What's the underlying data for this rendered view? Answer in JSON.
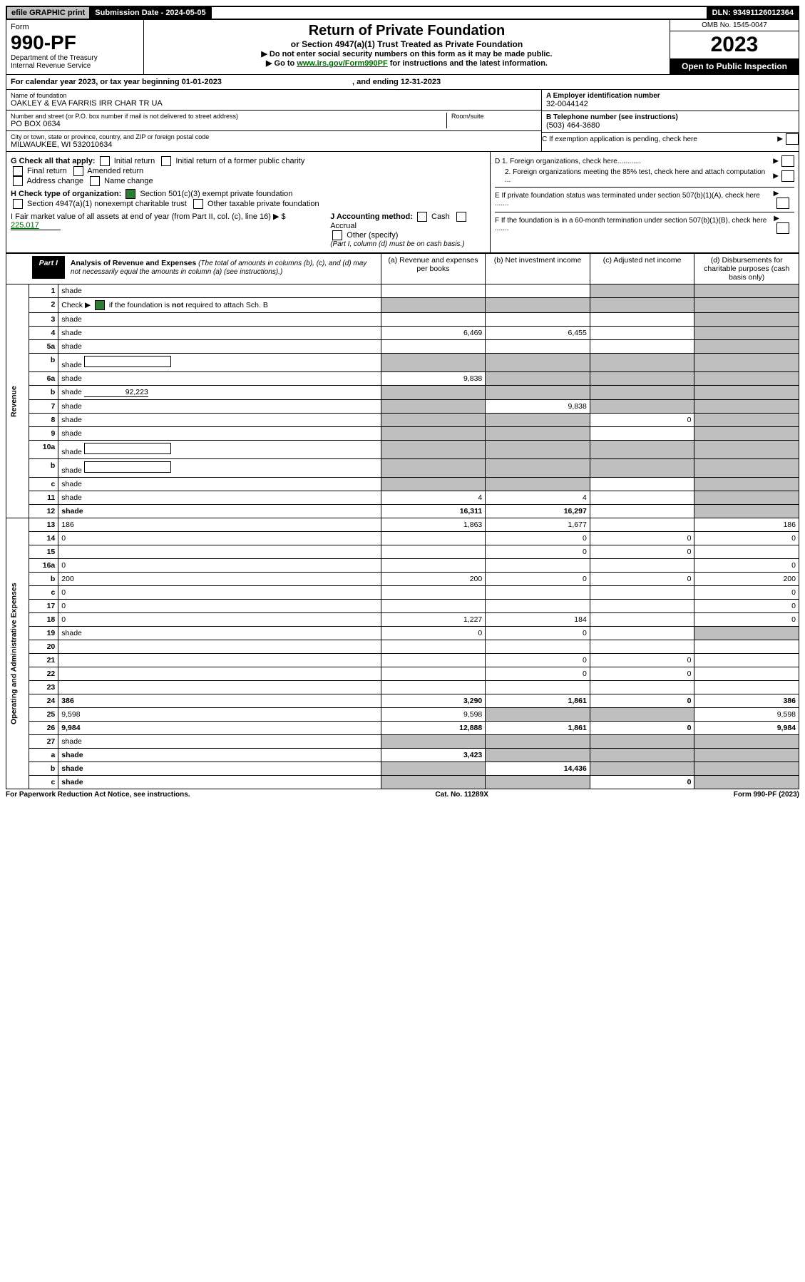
{
  "top": {
    "efile": "efile GRAPHIC print",
    "submission": "Submission Date - 2024-05-05",
    "dln": "DLN: 93491126012364"
  },
  "header": {
    "form_label": "Form",
    "form_num": "990-PF",
    "dept": "Department of the Treasury",
    "irs": "Internal Revenue Service",
    "title": "Return of Private Foundation",
    "subtitle": "or Section 4947(a)(1) Trust Treated as Private Foundation",
    "note1": "▶ Do not enter social security numbers on this form as it may be made public.",
    "note2_pre": "▶ Go to ",
    "note2_link": "www.irs.gov/Form990PF",
    "note2_post": " for instructions and the latest information.",
    "omb": "OMB No. 1545-0047",
    "year": "2023",
    "open": "Open to Public Inspection"
  },
  "cal_year": {
    "text_pre": "For calendar year 2023, or tax year beginning ",
    "begin": "01-01-2023",
    "text_mid": " , and ending ",
    "end": "12-31-2023"
  },
  "ident": {
    "name_label": "Name of foundation",
    "name": "OAKLEY & EVA FARRIS IRR CHAR TR UA",
    "addr_label": "Number and street (or P.O. box number if mail is not delivered to street address)",
    "addr": "PO BOX 0634",
    "room_label": "Room/suite",
    "city_label": "City or town, state or province, country, and ZIP or foreign postal code",
    "city": "MILWAUKEE, WI  532010634",
    "a_label": "A Employer identification number",
    "a_val": "32-0044142",
    "b_label": "B Telephone number (see instructions)",
    "b_val": "(503) 464-3680",
    "c_label": "C If exemption application is pending, check here"
  },
  "checks": {
    "g": "G Check all that apply:",
    "g_opts": [
      "Initial return",
      "Initial return of a former public charity",
      "Final return",
      "Amended return",
      "Address change",
      "Name change"
    ],
    "h": "H Check type of organization:",
    "h_opts": [
      "Section 501(c)(3) exempt private foundation",
      "Section 4947(a)(1) nonexempt charitable trust",
      "Other taxable private foundation"
    ],
    "i_pre": "I Fair market value of all assets at end of year (from Part II, col. (c), line 16) ▶ $",
    "i_val": "225,017",
    "j": "J Accounting method:",
    "j_opts": [
      "Cash",
      "Accrual",
      "Other (specify)"
    ],
    "j_note": "(Part I, column (d) must be on cash basis.)",
    "d1": "D 1. Foreign organizations, check here............",
    "d2": "2. Foreign organizations meeting the 85% test, check here and attach computation ...",
    "e": "E  If private foundation status was terminated under section 507(b)(1)(A), check here .......",
    "f": "F  If the foundation is in a 60-month termination under section 507(b)(1)(B), check here .......",
    "h_checked_idx": 0
  },
  "part1": {
    "badge": "Part I",
    "title": "Analysis of Revenue and Expenses",
    "title_note": "(The total of amounts in columns (b), (c), and (d) may not necessarily equal the amounts in column (a) (see instructions).)",
    "cols": {
      "a": "(a) Revenue and expenses per books",
      "b": "(b) Net investment income",
      "c": "(c) Adjusted net income",
      "d": "(d) Disbursements for charitable purposes (cash basis only)"
    },
    "side_labels": {
      "rev": "Revenue",
      "exp": "Operating and Administrative Expenses"
    }
  },
  "rows": [
    {
      "n": "1",
      "d": "shade",
      "a": "",
      "b": "",
      "c": "shade"
    },
    {
      "n": "2",
      "d": "shade",
      "a": "shade",
      "b": "shade",
      "c": "shade",
      "bold": false,
      "check": true
    },
    {
      "n": "3",
      "d": "shade",
      "a": "",
      "b": "",
      "c": ""
    },
    {
      "n": "4",
      "d": "shade",
      "a": "6,469",
      "b": "6,455",
      "c": ""
    },
    {
      "n": "5a",
      "d": "shade",
      "a": "",
      "b": "",
      "c": ""
    },
    {
      "n": "b",
      "d": "shade",
      "a": "shade",
      "b": "shade",
      "c": "shade",
      "inline_box": true
    },
    {
      "n": "6a",
      "d": "shade",
      "a": "9,838",
      "b": "shade",
      "c": "shade"
    },
    {
      "n": "b",
      "d": "shade",
      "a": "shade",
      "b": "shade",
      "c": "shade",
      "inline_val": "92,223"
    },
    {
      "n": "7",
      "d": "shade",
      "a": "shade",
      "b": "9,838",
      "c": "shade"
    },
    {
      "n": "8",
      "d": "shade",
      "a": "shade",
      "b": "shade",
      "c": "0"
    },
    {
      "n": "9",
      "d": "shade",
      "a": "shade",
      "b": "shade",
      "c": ""
    },
    {
      "n": "10a",
      "d": "shade",
      "a": "shade",
      "b": "shade",
      "c": "shade",
      "inline_box": true
    },
    {
      "n": "b",
      "d": "shade",
      "a": "shade",
      "b": "shade",
      "c": "shade",
      "inline_box": true
    },
    {
      "n": "c",
      "d": "shade",
      "a": "shade",
      "b": "shade",
      "c": ""
    },
    {
      "n": "11",
      "d": "shade",
      "a": "4",
      "b": "4",
      "c": ""
    },
    {
      "n": "12",
      "d": "shade",
      "a": "16,311",
      "b": "16,297",
      "c": "",
      "bold": true
    },
    {
      "n": "13",
      "d": "186",
      "a": "1,863",
      "b": "1,677",
      "c": ""
    },
    {
      "n": "14",
      "d": "0",
      "a": "",
      "b": "0",
      "c": "0"
    },
    {
      "n": "15",
      "d": "",
      "a": "",
      "b": "0",
      "c": "0"
    },
    {
      "n": "16a",
      "d": "0",
      "a": "",
      "b": "",
      "c": ""
    },
    {
      "n": "b",
      "d": "200",
      "a": "200",
      "b": "0",
      "c": "0"
    },
    {
      "n": "c",
      "d": "0",
      "a": "",
      "b": "",
      "c": ""
    },
    {
      "n": "17",
      "d": "0",
      "a": "",
      "b": "",
      "c": ""
    },
    {
      "n": "18",
      "d": "0",
      "a": "1,227",
      "b": "184",
      "c": ""
    },
    {
      "n": "19",
      "d": "shade",
      "a": "0",
      "b": "0",
      "c": ""
    },
    {
      "n": "20",
      "d": "",
      "a": "",
      "b": "",
      "c": ""
    },
    {
      "n": "21",
      "d": "",
      "a": "",
      "b": "0",
      "c": "0"
    },
    {
      "n": "22",
      "d": "",
      "a": "",
      "b": "0",
      "c": "0"
    },
    {
      "n": "23",
      "d": "",
      "a": "",
      "b": "",
      "c": ""
    },
    {
      "n": "24",
      "d": "386",
      "a": "3,290",
      "b": "1,861",
      "c": "0",
      "bold": true
    },
    {
      "n": "25",
      "d": "9,598",
      "a": "9,598",
      "b": "shade",
      "c": "shade"
    },
    {
      "n": "26",
      "d": "9,984",
      "a": "12,888",
      "b": "1,861",
      "c": "0",
      "bold": true
    },
    {
      "n": "27",
      "d": "shade",
      "a": "shade",
      "b": "shade",
      "c": "shade"
    },
    {
      "n": "a",
      "d": "shade",
      "a": "3,423",
      "b": "shade",
      "c": "shade",
      "bold": true
    },
    {
      "n": "b",
      "d": "shade",
      "a": "shade",
      "b": "14,436",
      "c": "shade",
      "bold": true
    },
    {
      "n": "c",
      "d": "shade",
      "a": "shade",
      "b": "shade",
      "c": "0",
      "bold": true
    }
  ],
  "footer": {
    "left": "For Paperwork Reduction Act Notice, see instructions.",
    "mid": "Cat. No. 11289X",
    "right": "Form 990-PF (2023)"
  }
}
